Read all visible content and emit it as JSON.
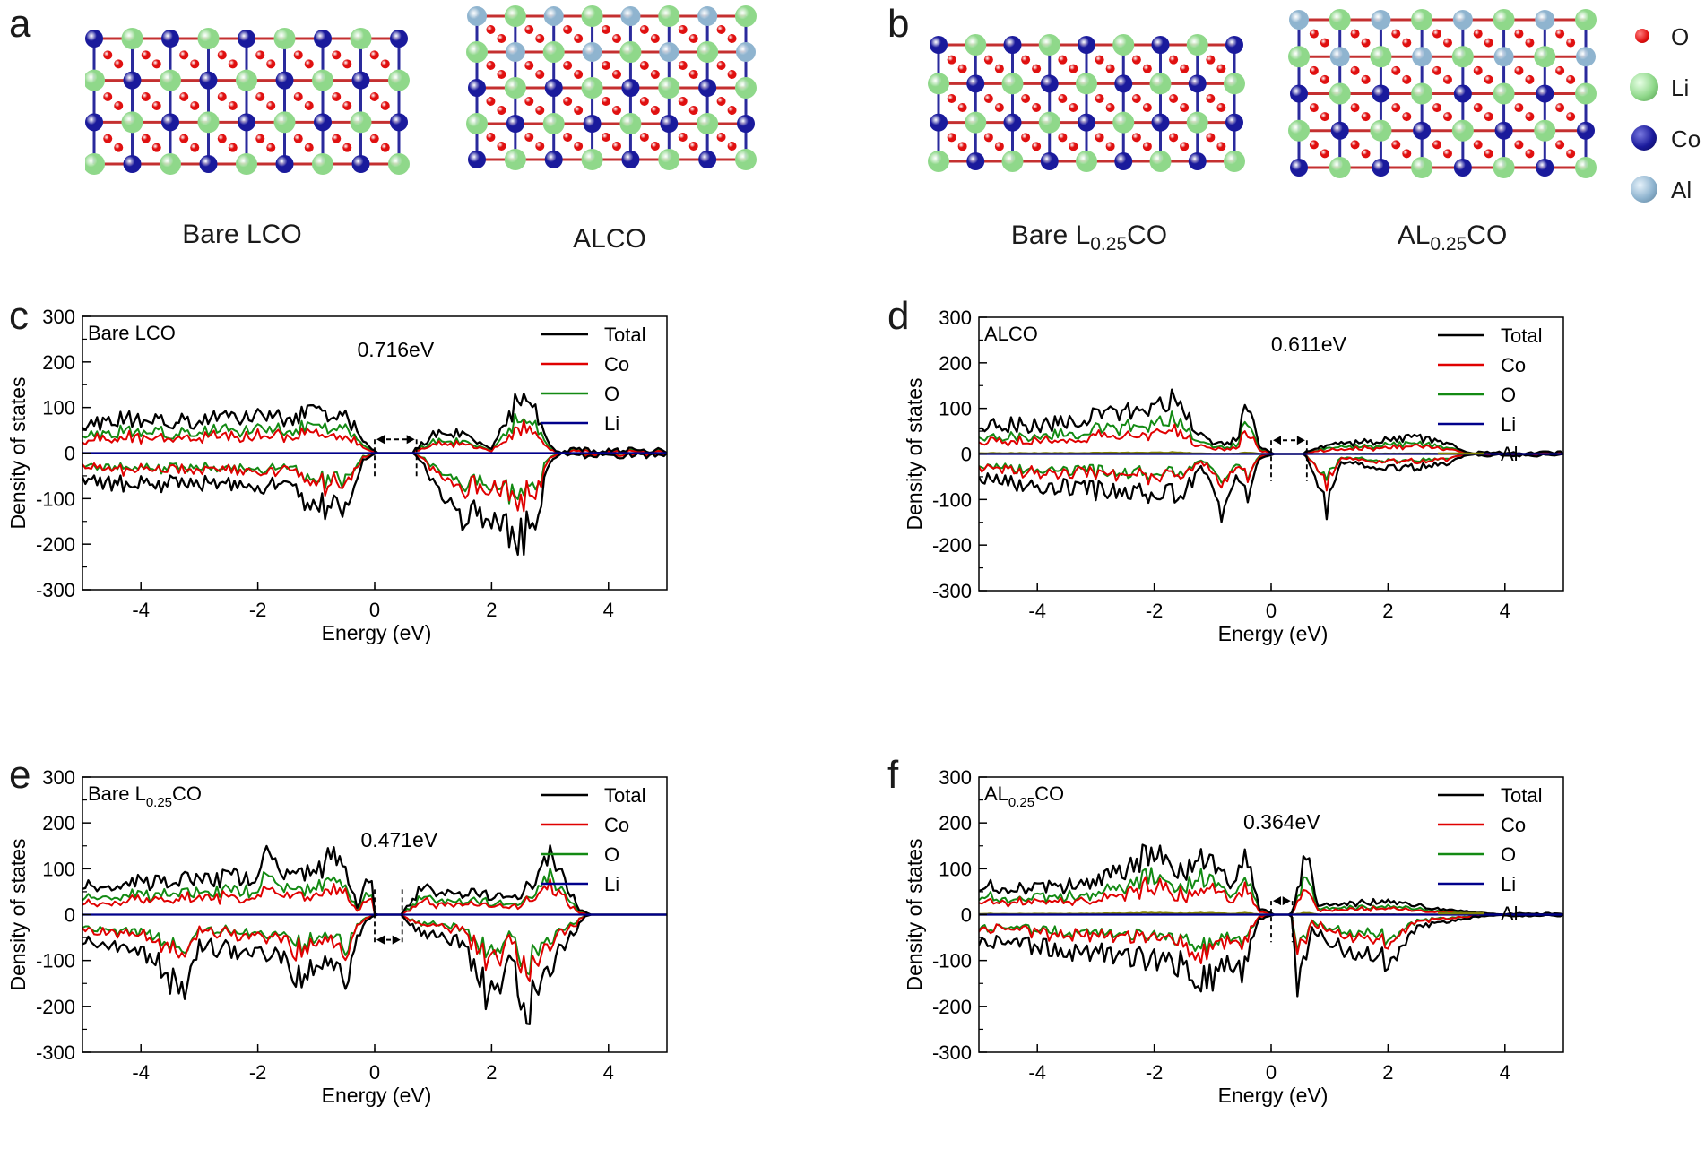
{
  "panel_letters": [
    "a",
    "b",
    "c",
    "d",
    "e",
    "f"
  ],
  "structures": {
    "a": {
      "left_label": "Bare LCO",
      "right_label": "ALCO"
    },
    "b": {
      "left_label_main": "Bare L",
      "left_label_sub": "0.25",
      "left_label_end": "CO",
      "right_label_main": "AL",
      "right_label_sub": "0.25",
      "right_label_end": "CO"
    }
  },
  "atom_legend": [
    {
      "symbol": "O",
      "color": "#e01010"
    },
    {
      "symbol": "Li",
      "color": "#8fd88a"
    },
    {
      "symbol": "Co",
      "color": "#1a1a9c"
    },
    {
      "symbol": "Al",
      "color": "#8fb4cf"
    }
  ],
  "colors": {
    "Total": "#000000",
    "Co": "#e00000",
    "O": "#138a13",
    "Li": "#00008b",
    "Al": "#808000"
  },
  "chart_data": [
    {
      "type": "line",
      "panel": "c",
      "title": "Bare LCO",
      "title_sub": "",
      "title_end": "",
      "xlabel": "Energy (eV)",
      "ylabel": "Density of states",
      "xlim": [
        -5,
        5
      ],
      "ylim": [
        -300,
        300
      ],
      "xticks": [
        -4,
        -2,
        0,
        2,
        4
      ],
      "yticks": [
        300,
        200,
        100,
        0,
        -100,
        -200,
        -300
      ],
      "legend": [
        "Total",
        "Co",
        "O",
        "Li"
      ],
      "gap_label": "0.716eV",
      "gap": [
        0,
        0.716
      ],
      "seed": 11,
      "profile": {
        "up": [
          [
            -5,
            65
          ],
          [
            -4,
            75
          ],
          [
            -3,
            72
          ],
          [
            -2,
            78
          ],
          [
            -1.5,
            82
          ],
          [
            -1,
            95
          ],
          [
            -0.5,
            85
          ],
          [
            -0.2,
            25
          ],
          [
            0,
            5
          ],
          [
            0.716,
            10
          ],
          [
            1,
            40
          ],
          [
            1.5,
            45
          ],
          [
            2,
            10
          ],
          [
            2.3,
            80
          ],
          [
            2.5,
            140
          ],
          [
            2.7,
            100
          ],
          [
            3,
            20
          ],
          [
            3.1,
            5
          ],
          [
            3.2,
            0
          ],
          [
            5,
            0
          ]
        ],
        "down": [
          [
            -5,
            -60
          ],
          [
            -4,
            -70
          ],
          [
            -3,
            -65
          ],
          [
            -2,
            -70
          ],
          [
            -1.5,
            -75
          ],
          [
            -1,
            -120
          ],
          [
            -0.5,
            -110
          ],
          [
            -0.2,
            -15
          ],
          [
            0,
            -2
          ],
          [
            0.716,
            -5
          ],
          [
            1,
            -60
          ],
          [
            1.5,
            -140
          ],
          [
            2,
            -140
          ],
          [
            2.5,
            -190
          ],
          [
            2.8,
            -120
          ],
          [
            3,
            -20
          ],
          [
            3.2,
            0
          ],
          [
            5,
            0
          ]
        ]
      },
      "tail": [
        3.2,
        5,
        12
      ]
    },
    {
      "type": "line",
      "panel": "d",
      "title": "ALCO",
      "title_sub": "",
      "title_end": "",
      "xlabel": "Energy (eV)",
      "ylabel": "Density of states",
      "xlim": [
        -5,
        5
      ],
      "ylim": [
        -300,
        300
      ],
      "xticks": [
        -4,
        -2,
        0,
        2,
        4
      ],
      "yticks": [
        300,
        200,
        100,
        0,
        -100,
        -200,
        -300
      ],
      "legend": [
        "Total",
        "Co",
        "O",
        "Li",
        "Al"
      ],
      "gap_label": "0.611eV",
      "gap": [
        0,
        0.611
      ],
      "seed": 23,
      "profile": {
        "up": [
          [
            -5,
            65
          ],
          [
            -4,
            62
          ],
          [
            -3,
            80
          ],
          [
            -2,
            105
          ],
          [
            -1.7,
            130
          ],
          [
            -1.2,
            40
          ],
          [
            -1,
            20
          ],
          [
            -0.6,
            30
          ],
          [
            -0.4,
            110
          ],
          [
            -0.2,
            15
          ],
          [
            0,
            3
          ],
          [
            0.611,
            5
          ],
          [
            1,
            20
          ],
          [
            1.5,
            25
          ],
          [
            2,
            30
          ],
          [
            2.5,
            35
          ],
          [
            3,
            25
          ],
          [
            3.3,
            5
          ],
          [
            3.5,
            0
          ],
          [
            5,
            0
          ]
        ],
        "down": [
          [
            -5,
            -55
          ],
          [
            -4,
            -70
          ],
          [
            -3,
            -80
          ],
          [
            -2,
            -90
          ],
          [
            -1.5,
            -85
          ],
          [
            -1.2,
            -30
          ],
          [
            -1,
            -60
          ],
          [
            -0.85,
            -185
          ],
          [
            -0.6,
            -40
          ],
          [
            -0.4,
            -90
          ],
          [
            -0.2,
            -10
          ],
          [
            0,
            -2
          ],
          [
            0.611,
            -5
          ],
          [
            0.95,
            -120
          ],
          [
            1.2,
            -20
          ],
          [
            2,
            -30
          ],
          [
            2.5,
            -30
          ],
          [
            3,
            -20
          ],
          [
            3.3,
            -5
          ],
          [
            3.5,
            0
          ],
          [
            5,
            0
          ]
        ]
      },
      "tail": [
        3.5,
        5,
        6
      ]
    },
    {
      "type": "line",
      "panel": "e",
      "title": "Bare L",
      "title_sub": "0.25",
      "title_end": "CO",
      "xlabel": "Energy (eV)",
      "ylabel": "Density of states",
      "xlim": [
        -5,
        5
      ],
      "ylim": [
        -300,
        300
      ],
      "xticks": [
        -4,
        -2,
        0,
        2,
        4
      ],
      "yticks": [
        300,
        200,
        100,
        0,
        -100,
        -200,
        -300
      ],
      "legend": [
        "Total",
        "Co",
        "O",
        "Li"
      ],
      "gap_label": "0.471eV",
      "gap": [
        0,
        0.471
      ],
      "seed": 37,
      "profile": {
        "up": [
          [
            -5,
            65
          ],
          [
            -4,
            70
          ],
          [
            -3,
            75
          ],
          [
            -2,
            85
          ],
          [
            -1.8,
            140
          ],
          [
            -1.5,
            80
          ],
          [
            -1,
            90
          ],
          [
            -0.6,
            145
          ],
          [
            -0.3,
            20
          ],
          [
            -0.05,
            90
          ],
          [
            0,
            2
          ],
          [
            0.471,
            5
          ],
          [
            0.8,
            55
          ],
          [
            1.5,
            50
          ],
          [
            2,
            40
          ],
          [
            2.5,
            45
          ],
          [
            3,
            120
          ],
          [
            3.3,
            60
          ],
          [
            3.5,
            10
          ],
          [
            3.7,
            0
          ],
          [
            5,
            0
          ]
        ],
        "down": [
          [
            -5,
            -60
          ],
          [
            -4,
            -70
          ],
          [
            -3.3,
            -165
          ],
          [
            -3,
            -70
          ],
          [
            -2,
            -80
          ],
          [
            -1.5,
            -90
          ],
          [
            -1.2,
            -170
          ],
          [
            -1,
            -90
          ],
          [
            -0.5,
            -145
          ],
          [
            -0.2,
            -20
          ],
          [
            0,
            -2
          ],
          [
            0.471,
            -5
          ],
          [
            0.8,
            -40
          ],
          [
            1.5,
            -60
          ],
          [
            2,
            -195
          ],
          [
            2.3,
            -90
          ],
          [
            2.6,
            -210
          ],
          [
            3,
            -110
          ],
          [
            3.3,
            -60
          ],
          [
            3.6,
            -5
          ],
          [
            3.7,
            0
          ],
          [
            5,
            0
          ]
        ]
      },
      "tail": [
        3.7,
        3.8,
        0
      ]
    },
    {
      "type": "line",
      "panel": "f",
      "title": "AL",
      "title_sub": "0.25",
      "title_end": "CO",
      "xlabel": "Energy (eV)",
      "ylabel": "Density of states",
      "xlim": [
        -5,
        5
      ],
      "ylim": [
        -300,
        300
      ],
      "xticks": [
        -4,
        -2,
        0,
        2,
        4
      ],
      "yticks": [
        300,
        200,
        100,
        0,
        -100,
        -200,
        -300
      ],
      "legend": [
        "Total",
        "Co",
        "O",
        "Li",
        "Al"
      ],
      "gap_label": "0.364eV",
      "gap": [
        0,
        0.364
      ],
      "seed": 51,
      "profile": {
        "up": [
          [
            -5,
            60
          ],
          [
            -4,
            55
          ],
          [
            -3,
            70
          ],
          [
            -2.1,
            130
          ],
          [
            -1.5,
            95
          ],
          [
            -1.05,
            145
          ],
          [
            -0.7,
            60
          ],
          [
            -0.45,
            145
          ],
          [
            -0.2,
            15
          ],
          [
            0,
            3
          ],
          [
            0.364,
            5
          ],
          [
            0.6,
            130
          ],
          [
            0.8,
            20
          ],
          [
            1.5,
            25
          ],
          [
            2,
            30
          ],
          [
            2.5,
            20
          ],
          [
            3,
            10
          ],
          [
            3.5,
            5
          ],
          [
            4,
            0
          ],
          [
            5,
            0
          ]
        ],
        "down": [
          [
            -5,
            -55
          ],
          [
            -4,
            -70
          ],
          [
            -3,
            -85
          ],
          [
            -2,
            -100
          ],
          [
            -1.5,
            -110
          ],
          [
            -1.1,
            -150
          ],
          [
            -0.8,
            -100
          ],
          [
            -0.5,
            -120
          ],
          [
            -0.2,
            -10
          ],
          [
            0,
            -2
          ],
          [
            0.364,
            -5
          ],
          [
            0.45,
            -150
          ],
          [
            0.7,
            -30
          ],
          [
            1.3,
            -80
          ],
          [
            2,
            -100
          ],
          [
            2.5,
            -30
          ],
          [
            3,
            -15
          ],
          [
            3.5,
            -5
          ],
          [
            4,
            0
          ],
          [
            5,
            0
          ]
        ]
      },
      "tail": [
        4,
        5,
        4
      ]
    }
  ]
}
